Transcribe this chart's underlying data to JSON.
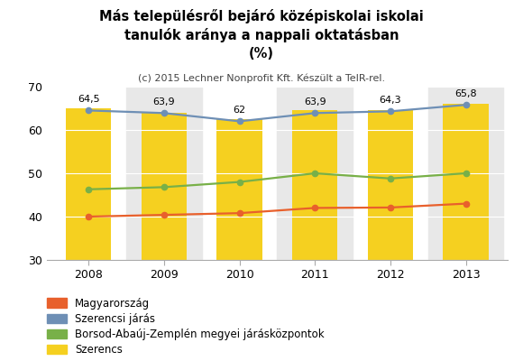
{
  "title_line1": "Más településről bejáró középiskolai iskolai",
  "title_line2": "tanulók aránya a nappali oktatásban",
  "title_line3": "(%)",
  "subtitle": "(c) 2015 Lechner Nonprofit Kft. Készült a TeIR-rel.",
  "years": [
    2008,
    2009,
    2010,
    2011,
    2012,
    2013
  ],
  "magyarorszag": [
    40.0,
    40.4,
    40.8,
    42.0,
    42.1,
    43.0
  ],
  "szerencsi_jaras": [
    64.5,
    63.9,
    62.0,
    63.9,
    64.3,
    65.8
  ],
  "borsod": [
    46.3,
    46.8,
    48.0,
    50.0,
    48.8,
    50.0
  ],
  "szerencs_bar": [
    65.0,
    64.0,
    62.5,
    64.5,
    64.5,
    66.0
  ],
  "color_magyarorszag": "#e8602c",
  "color_szerencsi": "#6e8fb5",
  "color_borsod": "#78b048",
  "color_szerencs_bar": "#f5d020",
  "color_grey_band": "#e8e8e8",
  "ylim_min": 30,
  "ylim_max": 70,
  "yticks": [
    30,
    40,
    50,
    60,
    70
  ],
  "legend_magyarorszag": "Magyarország",
  "legend_szerencsi": "Szerencsi járás",
  "legend_borsod": "Borsod-Abaúj-Zemplén megyei járásközpontok",
  "legend_szerencs": "Szerencs",
  "bar_width": 0.6,
  "label_fontsize": 8,
  "title_fontsize": 10.5,
  "subtitle_fontsize": 8,
  "axis_fontsize": 9,
  "legend_fontsize": 8.5
}
